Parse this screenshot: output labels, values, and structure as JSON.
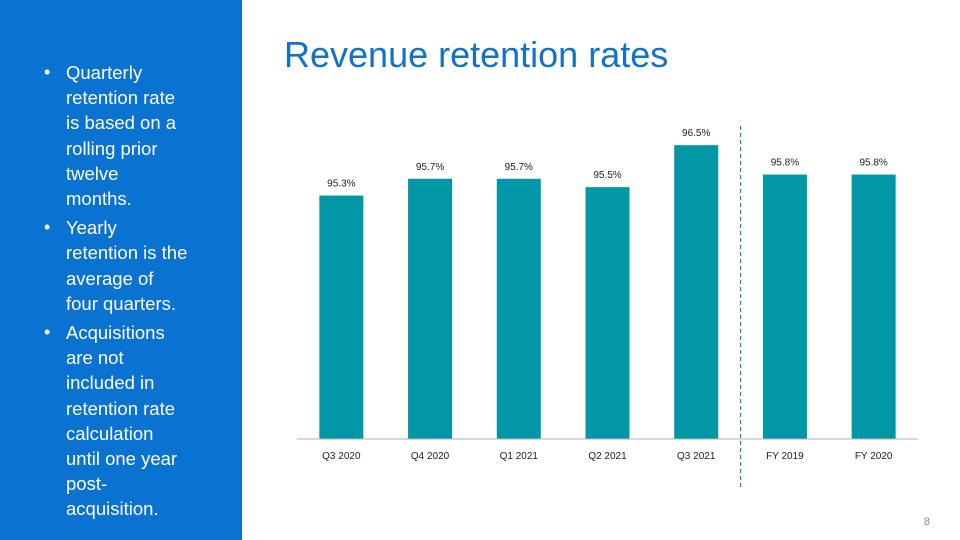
{
  "sidebar": {
    "bullets": [
      "Quarterly retention rate is based on a rolling prior twelve months.",
      "Yearly retention is the average of four quarters.",
      "Acquisitions are not included in retention rate calculation until one year post-acquisition."
    ]
  },
  "slide": {
    "title": "Revenue retention rates",
    "page_number": "8"
  },
  "chart_data": {
    "type": "bar",
    "title": "",
    "xlabel": "",
    "ylabel": "",
    "categories": [
      "Q3 2020",
      "Q4 2020",
      "Q1 2021",
      "Q2 2021",
      "Q3 2021",
      "FY 2019",
      "FY 2020"
    ],
    "values": [
      95.3,
      95.7,
      95.7,
      95.5,
      96.5,
      95.8,
      95.8
    ],
    "data_labels": [
      "95.3%",
      "95.7%",
      "95.7%",
      "95.5%",
      "96.5%",
      "95.8%",
      "95.8%"
    ],
    "ylim": [
      89.5,
      97.1
    ],
    "grid": false,
    "legend": "none",
    "divider_after_category": "Q3 2021",
    "colors": {
      "bar": "#0097a7",
      "divider": "#2b7fb4",
      "axis": "#b3b3b3"
    }
  }
}
